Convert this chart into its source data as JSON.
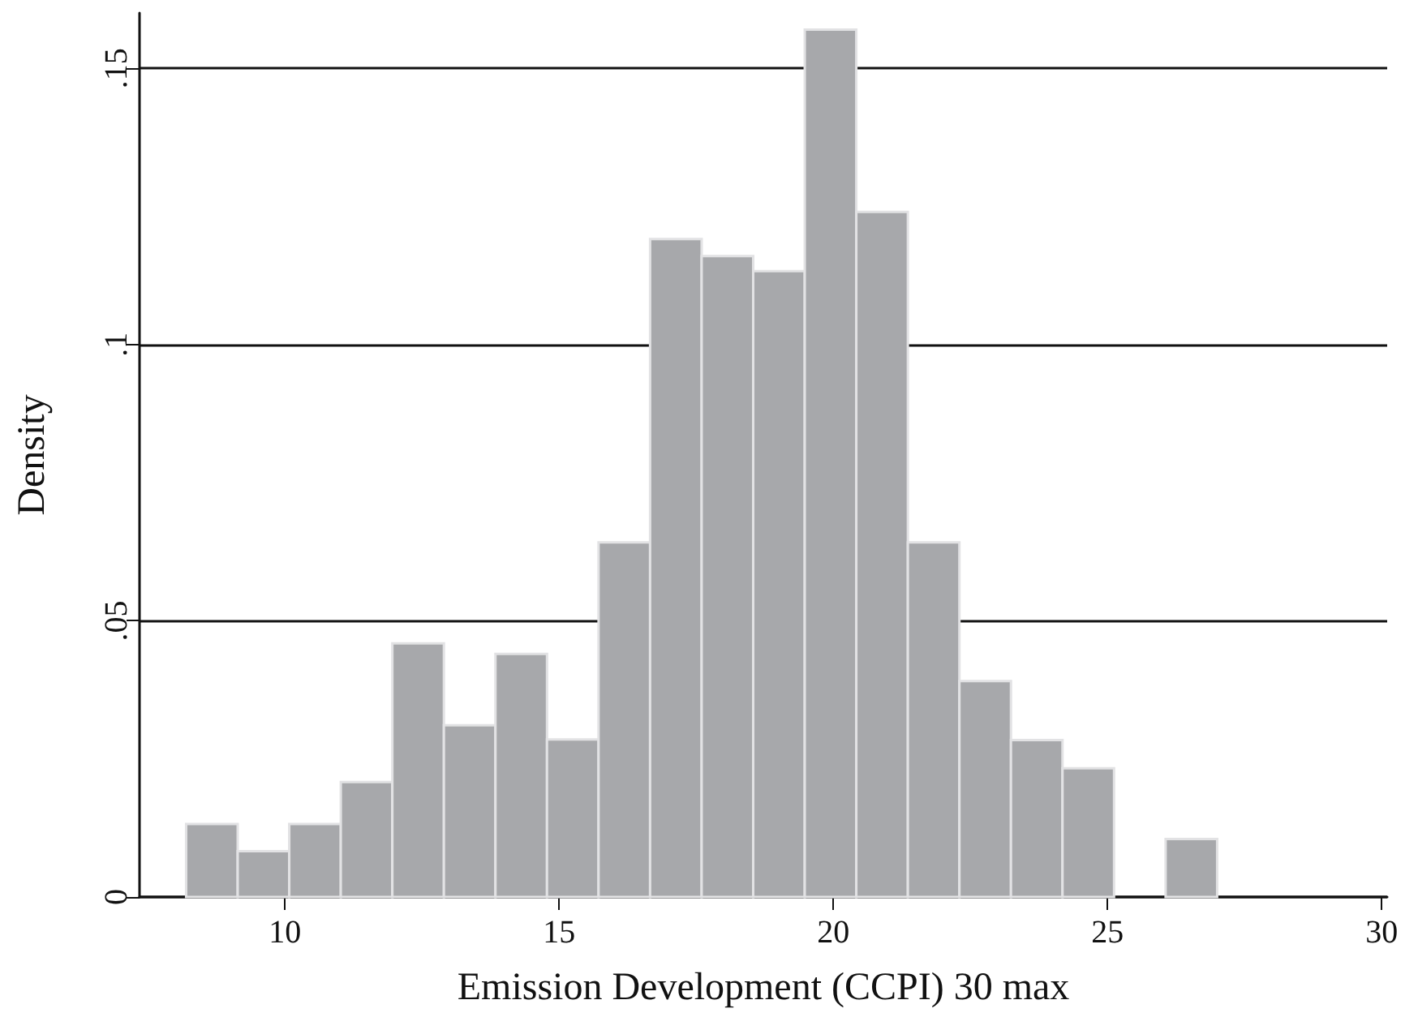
{
  "chart_data": {
    "type": "histogram",
    "xlabel": "Emission Development (CCPI) 30 max",
    "ylabel": "Density",
    "bins": [
      8.2,
      9.14,
      10.08,
      11.02,
      11.96,
      12.9,
      13.84,
      14.78,
      15.72,
      16.66,
      17.6,
      18.54,
      19.48,
      20.42,
      21.36,
      22.3,
      23.24,
      24.18,
      25.12,
      26.06,
      27.0
    ],
    "values": [
      0.0132,
      0.0083,
      0.0132,
      0.0208,
      0.0459,
      0.0311,
      0.044,
      0.0285,
      0.0642,
      0.1191,
      0.116,
      0.1133,
      0.157,
      0.124,
      0.0642,
      0.0391,
      0.0284,
      0.0233,
      0,
      0.0105
    ],
    "color": "#a7a8ab",
    "xlim": [
      7.35,
      30.1
    ],
    "xticks": [
      10,
      15,
      20,
      25,
      30
    ],
    "ylim": [
      0,
      0.16
    ],
    "yticks": [
      0,
      {
        "value": 0.05,
        "label": ".05"
      },
      {
        "value": 0.1,
        "label": ".1"
      },
      {
        "value": 0.15,
        "label": ".15"
      }
    ],
    "grid": "y"
  }
}
